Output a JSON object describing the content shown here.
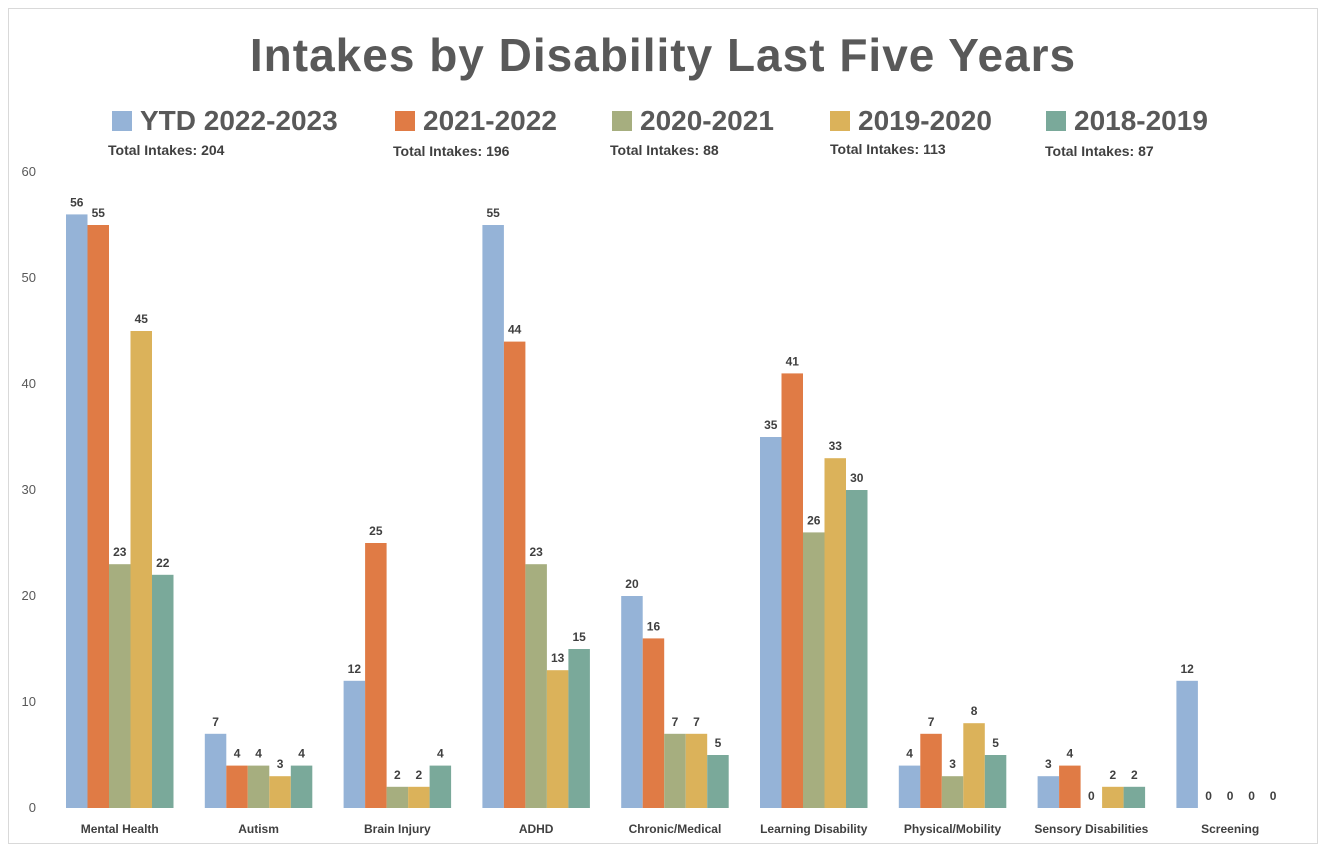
{
  "chart_data": {
    "type": "bar",
    "title": "Intakes by Disability Last Five Years",
    "categories": [
      "Mental Health",
      "Autism",
      "Brain Injury",
      "ADHD",
      "Chronic/Medical",
      "Learning Disability",
      "Physical/Mobility",
      "Sensory Disabilities",
      "Screening"
    ],
    "series": [
      {
        "name": "YTD 2022-2023",
        "color": "#95b3d7",
        "total": "Total Intakes: 204",
        "values": [
          56,
          7,
          12,
          55,
          20,
          35,
          4,
          3,
          12
        ]
      },
      {
        "name": "2021-2022",
        "color": "#e07b45",
        "total": "Total Intakes: 196",
        "values": [
          55,
          4,
          25,
          44,
          16,
          41,
          7,
          4,
          0
        ]
      },
      {
        "name": "2020-2021",
        "color": "#a6ae7f",
        "total": "Total Intakes: 88",
        "values": [
          23,
          4,
          2,
          23,
          7,
          26,
          3,
          0,
          0
        ]
      },
      {
        "name": "2019-2020",
        "color": "#dbb25a",
        "total": "Total Intakes: 113",
        "values": [
          45,
          3,
          2,
          13,
          7,
          33,
          8,
          2,
          0
        ]
      },
      {
        "name": "2018-2019",
        "color": "#7aa99a",
        "total": "Total Intakes: 87",
        "values": [
          22,
          4,
          4,
          15,
          5,
          30,
          5,
          2,
          0
        ]
      }
    ],
    "yticks": [
      "0",
      "10",
      "20",
      "30",
      "40",
      "50",
      "60"
    ],
    "ylim": [
      0,
      60
    ],
    "xlabel": "",
    "ylabel": "",
    "grid": false,
    "data_labels": true,
    "legend_position": "top"
  }
}
